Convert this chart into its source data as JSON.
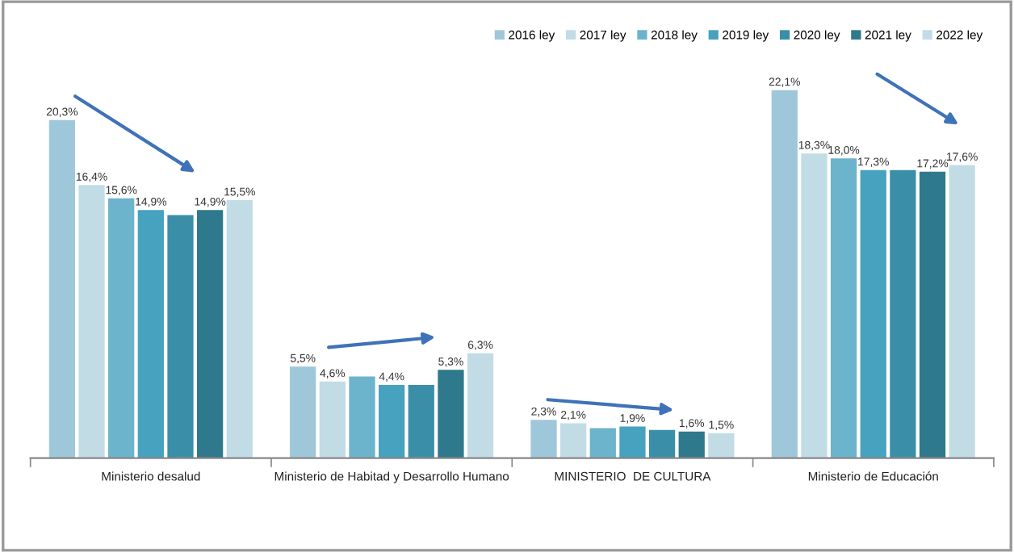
{
  "chart_data": {
    "type": "bar",
    "categories": [
      "Ministerio desalud",
      "Ministerio de Habitad y Desarrollo Humano",
      "MINISTERIO  DE CULTURA",
      "Ministerio de Educación"
    ],
    "series": [
      {
        "name": "2016 ley",
        "color": "#9fc7da",
        "values": [
          20.3,
          5.5,
          2.3,
          22.1
        ],
        "value_labels": [
          "20,3%",
          "5,5%",
          "2,3%",
          "22,1%"
        ]
      },
      {
        "name": "2017 ley",
        "color": "#c2dce6",
        "values": [
          16.4,
          4.6,
          2.1,
          18.3
        ],
        "value_labels": [
          "16,4%",
          "4,6%",
          "2,1%",
          "18,3%"
        ]
      },
      {
        "name": "2018 ley",
        "color": "#6cb3cc",
        "values": [
          15.6,
          4.9,
          1.8,
          18.0
        ],
        "value_labels": [
          "15,6%",
          null,
          null,
          "18,0%"
        ]
      },
      {
        "name": "2019 ley",
        "color": "#46a2be",
        "values": [
          14.9,
          4.4,
          1.9,
          17.3
        ],
        "value_labels": [
          "14,9%",
          "4,4%",
          "1,9%",
          "17,3%"
        ]
      },
      {
        "name": "2020 ley",
        "color": "#3a8ea8",
        "values": [
          14.6,
          4.4,
          1.7,
          17.3
        ],
        "value_labels": [
          null,
          null,
          null,
          null
        ]
      },
      {
        "name": "2021 ley",
        "color": "#2e798b",
        "values": [
          14.9,
          5.3,
          1.6,
          17.2
        ],
        "value_labels": [
          "14,9%",
          "5,3%",
          "1,6%",
          "17,2%"
        ]
      },
      {
        "name": "2022 ley",
        "color": "#c2dce6",
        "values": [
          15.5,
          6.3,
          1.5,
          17.6
        ],
        "value_labels": [
          "15,5%",
          "6,3%",
          "1,5%",
          "17,6%"
        ]
      }
    ],
    "legend": "top right",
    "grid": false
  }
}
